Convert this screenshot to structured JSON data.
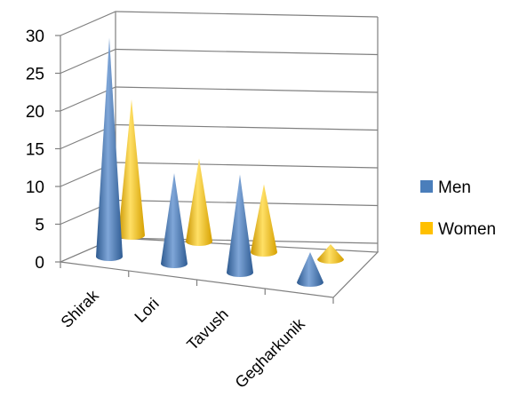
{
  "chart_data": {
    "type": "bar",
    "subtype": "3d-cone",
    "categories": [
      "Shirak",
      "Lori",
      "Tavush",
      "Gegharkunik"
    ],
    "series": [
      {
        "name": "Men",
        "values": [
          29,
          12,
          13,
          4
        ],
        "color": "#4A7EBB"
      },
      {
        "name": "Women",
        "values": [
          18,
          11,
          9,
          2
        ],
        "color": "#FFC000"
      }
    ],
    "yticks": [
      "0",
      "5",
      "10",
      "15",
      "20",
      "25",
      "30"
    ],
    "ylim": [
      0,
      30
    ],
    "grid": true,
    "legend": "right"
  }
}
